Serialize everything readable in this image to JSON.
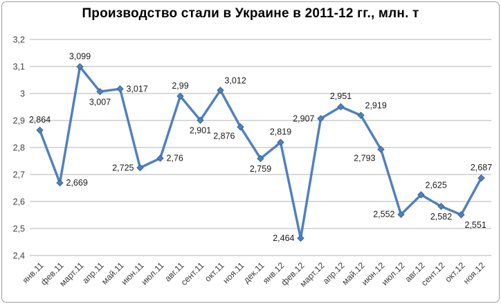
{
  "chart_data": {
    "type": "line",
    "title": "Производство стали в Украине в 2011-12 гг., млн. т",
    "categories": [
      "янв.11",
      "фев.11",
      "март.11",
      "апр.11",
      "май.11",
      "июн.11",
      "июл.11",
      "авг.11",
      "сент.11",
      "окт.11",
      "ноя.11",
      "дек.11",
      "янв.12",
      "фев.12",
      "март.12",
      "апр.12",
      "май.12",
      "июн.12",
      "июл.12",
      "авг.12",
      "сент.12",
      "окт.12",
      "ноя.12"
    ],
    "series": [
      {
        "values": [
          2.864,
          2.669,
          3.099,
          3.007,
          3.017,
          2.725,
          2.76,
          2.99,
          2.901,
          3.012,
          2.876,
          2.759,
          2.819,
          2.464,
          2.907,
          2.951,
          2.919,
          2.793,
          2.552,
          2.625,
          2.582,
          2.551,
          2.687
        ],
        "labels": [
          "2,864",
          "2,669",
          "3,099",
          "3,007",
          "3,017",
          "2,725",
          "2,76",
          "2,99",
          "2,901",
          "3,012",
          "2,876",
          "2,759",
          "2,819",
          "2,464",
          "2,907",
          "2,951",
          "2,919",
          "2,793",
          "2,552",
          "2,625",
          "2,582",
          "2,551",
          "2,687"
        ],
        "label_positions": [
          "above",
          "right",
          "above",
          "below",
          "right",
          "left",
          "right",
          "above",
          "below",
          "above-right",
          "below-left",
          "below",
          "above",
          "left",
          "left",
          "above",
          "above-right",
          "below-left",
          "left",
          "above-right",
          "below",
          "below-right",
          "above"
        ]
      }
    ],
    "ylim": [
      2.4,
      3.2
    ],
    "yticks": [
      {
        "value": 3.2,
        "label": "3,2"
      },
      {
        "value": 3.1,
        "label": "3,1"
      },
      {
        "value": 3.0,
        "label": "3"
      },
      {
        "value": 2.9,
        "label": "2,9"
      },
      {
        "value": 2.8,
        "label": "2,8"
      },
      {
        "value": 2.7,
        "label": "2,7"
      },
      {
        "value": 2.6,
        "label": "2,6"
      },
      {
        "value": 2.5,
        "label": "2,5"
      },
      {
        "value": 2.4,
        "label": "2,4"
      }
    ],
    "grid": "horizontal",
    "legend": "none",
    "x_label_rotation_deg": -45,
    "marker": "diamond",
    "colors": {
      "line": "#4F81BD",
      "marker": "#4F81BD",
      "marker_border": "#3A6596",
      "grid": "#B3B3B3",
      "axis_text": "#404040",
      "data_label": "#1a1a1a",
      "frame_border": "#9c9c9c",
      "background": "#ffffff"
    }
  }
}
